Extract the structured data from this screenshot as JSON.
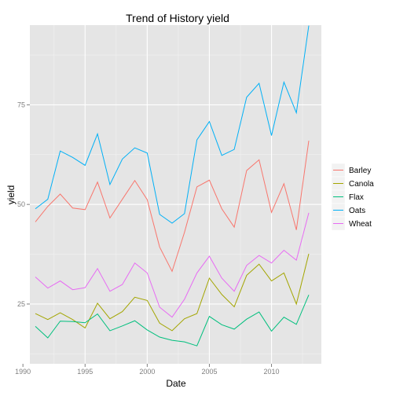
{
  "chart_data": {
    "type": "line",
    "title": "Trend of History yield",
    "xlabel": "Date",
    "ylabel": "yield",
    "x": [
      1991,
      1992,
      1993,
      1994,
      1995,
      1996,
      1997,
      1998,
      1999,
      2000,
      2001,
      2002,
      2003,
      2004,
      2005,
      2006,
      2007,
      2008,
      2009,
      2010,
      2011,
      2012,
      2013
    ],
    "xlim": [
      1990,
      2013
    ],
    "ylim": [
      10,
      95
    ],
    "x_ticks": [
      1990,
      1995,
      2000,
      2005,
      2010
    ],
    "x_tick_labels": [
      "1990",
      "1995",
      "2000",
      "2005",
      "2010"
    ],
    "y_ticks": [
      25,
      50,
      75
    ],
    "y_tick_labels": [
      "25",
      "50",
      "75"
    ],
    "grid": true,
    "legend_position": "right",
    "series": [
      {
        "name": "Barley",
        "color": "#F8766D",
        "values": [
          45.6,
          49.5,
          52.6,
          49.1,
          48.7,
          55.6,
          46.6,
          51.3,
          56.0,
          51.2,
          39.3,
          33.2,
          43.0,
          54.4,
          56.1,
          48.9,
          44.3,
          58.5,
          61.2,
          48.0,
          55.2,
          43.6,
          66.0
        ]
      },
      {
        "name": "Canola",
        "color": "#A3A500",
        "values": [
          22.6,
          21.1,
          22.8,
          21.1,
          19.0,
          25.2,
          21.3,
          23.1,
          26.7,
          25.9,
          20.2,
          18.3,
          21.3,
          22.6,
          31.5,
          27.4,
          24.3,
          32.2,
          35.0,
          30.8,
          32.8,
          25.0,
          37.6
        ]
      },
      {
        "name": "Flax",
        "color": "#00BF7D",
        "values": [
          19.4,
          16.5,
          20.7,
          20.6,
          20.3,
          22.5,
          18.3,
          19.5,
          20.8,
          18.5,
          16.7,
          15.9,
          15.5,
          14.5,
          21.9,
          19.8,
          18.7,
          21.2,
          23.0,
          18.2,
          21.7,
          19.9,
          27.3
        ]
      },
      {
        "name": "Oats",
        "color": "#00B0F6",
        "values": [
          48.9,
          51.3,
          63.4,
          61.8,
          59.8,
          67.7,
          55.0,
          61.4,
          64.2,
          62.9,
          47.5,
          45.3,
          47.7,
          66.2,
          70.8,
          62.3,
          63.8,
          76.9,
          80.4,
          67.3,
          80.7,
          73.0,
          94.9
        ]
      },
      {
        "name": "Wheat",
        "color": "#E76BF3",
        "values": [
          31.8,
          29.0,
          30.8,
          28.6,
          29.1,
          33.9,
          28.2,
          29.9,
          35.3,
          32.8,
          24.2,
          21.7,
          26.2,
          32.8,
          37.0,
          31.5,
          28.2,
          34.7,
          37.2,
          35.3,
          38.5,
          36.0,
          47.9
        ]
      }
    ]
  }
}
